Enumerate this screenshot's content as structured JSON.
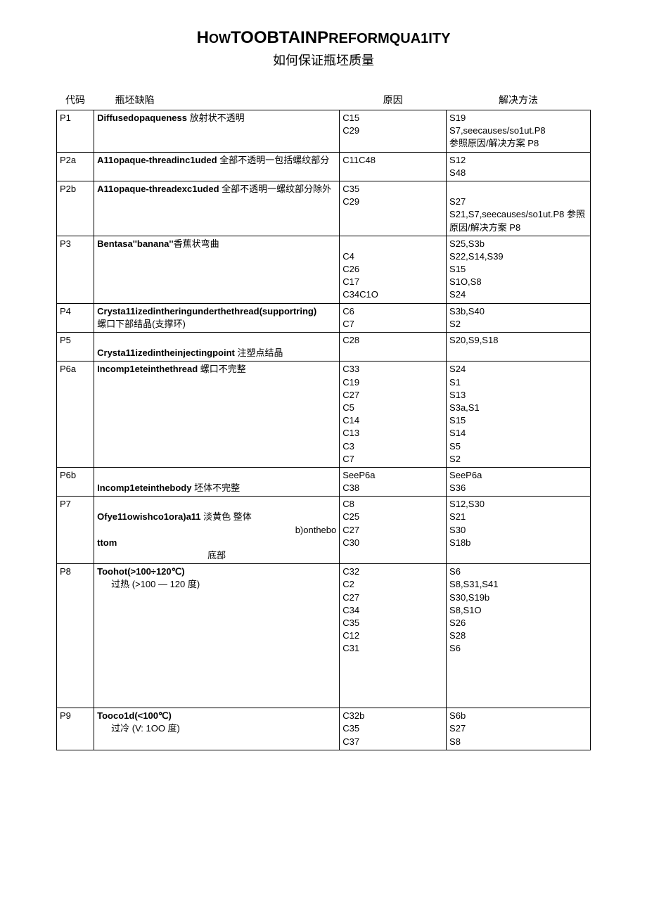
{
  "title_parts": {
    "p1": "H",
    "p2": "OW",
    "p3": "TOOBTAIN",
    "p4": "P",
    "p5": "REFORMQUA1ITY"
  },
  "subtitle": "如何保证瓶坯质量",
  "headers": {
    "code": "代码",
    "defect": "瓶坯缺陷",
    "cause": "原因",
    "solution": "解决方法"
  },
  "rows": [
    {
      "code": "P1",
      "defect_bold": "Diffusedopaqueness",
      "defect_rest": " 放射状不透明",
      "causes": [
        "C15",
        "C29"
      ],
      "solutions": [
        "S19",
        "S7,seecauses/so1ut.P8",
        "参照原因/解决方案 P8"
      ]
    },
    {
      "code": "P2a",
      "defect_bold": "A11opaque-threadinc1uded",
      "defect_rest": " 全部不透明一包括螺纹部分",
      "causes": [
        "C11C48"
      ],
      "solutions": [
        "S12",
        "S48"
      ]
    },
    {
      "code": "P2b",
      "defect_bold": "A11opaque-threadexc1uded",
      "defect_rest": " 全部不透明一螺纹部分除外",
      "causes": [
        "C35",
        "C29"
      ],
      "solutions": [
        "",
        "S27",
        "S21,S7,seecauses/so1ut.P8 参照原因/解决方案 P8"
      ]
    },
    {
      "code": "P3",
      "defect_bold": "Bentasa''banana''",
      "defect_rest": "香蕉状弯曲",
      "causes": [
        "",
        "C4",
        "C26",
        "C17",
        "C34C1O"
      ],
      "solutions": [
        "S25,S3b",
        "S22,S14,S39",
        "S15",
        "S1O,S8",
        "S24"
      ]
    },
    {
      "code": "P4",
      "defect_bold": "Crysta11izedintheringunderthethread(supportring)",
      "defect_rest": "",
      "defect_extra": "螺口下部结晶(支撑环)",
      "causes": [
        "C6",
        "C7"
      ],
      "solutions": [
        "S3b,S40",
        "S2"
      ]
    },
    {
      "code": "P5",
      "defect_pre": "",
      "defect_bold": "Crysta11izedintheinjectingpoint",
      "defect_rest": " 注塑点结晶",
      "causes": [
        "C28"
      ],
      "solutions": [
        "S20,S9,S18"
      ]
    },
    {
      "code": "P6a",
      "defect_bold": "Incomp1eteinthethread",
      "defect_rest": " 螺口不完整",
      "causes": [
        "C33",
        "C19",
        "C27",
        "C5",
        "C14",
        "C13",
        "C3",
        "C7"
      ],
      "solutions": [
        "S24",
        "S1",
        "S13",
        "S3a,S1",
        "S15",
        "S14",
        "S5",
        "S2"
      ]
    },
    {
      "code": "P6b",
      "defect_pre": "",
      "defect_bold": "Incomp1eteinthebody",
      "defect_rest": " 坯体不完整",
      "causes": [
        "SeeP6a",
        "C38"
      ],
      "solutions": [
        "SeeP6a",
        "S36"
      ]
    },
    {
      "code": "P7",
      "defect_lines": [
        {
          "bold": "",
          "rest": ""
        },
        {
          "bold": "Ofye11owishco1ora)a11",
          "rest": " 淡黄色  整体"
        },
        {
          "bold": "",
          "rest": "b)onthebo",
          "align": "right"
        },
        {
          "bold": "ttom",
          "rest": ""
        },
        {
          "bold": "",
          "rest": "底部",
          "align": "center"
        }
      ],
      "causes": [
        "C8",
        "C25",
        "C27",
        "C30"
      ],
      "solutions": [
        "S12,S30",
        "S21",
        "S30",
        "S18b"
      ]
    },
    {
      "code": "P8",
      "defect_lines": [
        {
          "bold": "Toohot(>100÷120℃)",
          "rest": ""
        },
        {
          "bold": "",
          "rest": "过热        (>100 — 120 度)",
          "indent": true
        }
      ],
      "causes": [
        "C32",
        "C2",
        "C27",
        "C34",
        "C35",
        "C12",
        "C31",
        "",
        "",
        "",
        ""
      ],
      "solutions": [
        "S6",
        "S8,S31,S41",
        "S30,S19b",
        "S8,S1O",
        "S26",
        "S28",
        "S6",
        "",
        "",
        "",
        ""
      ]
    },
    {
      "code": "P9",
      "defect_lines": [
        {
          "bold": "Tooco1d(<100℃)",
          "rest": ""
        },
        {
          "bold": "",
          "rest": "过冷            (V:  1OO 度)",
          "indent": true
        }
      ],
      "causes": [
        "C32b",
        "C35",
        "C37"
      ],
      "solutions": [
        "S6b",
        "S27",
        "S8"
      ]
    }
  ]
}
